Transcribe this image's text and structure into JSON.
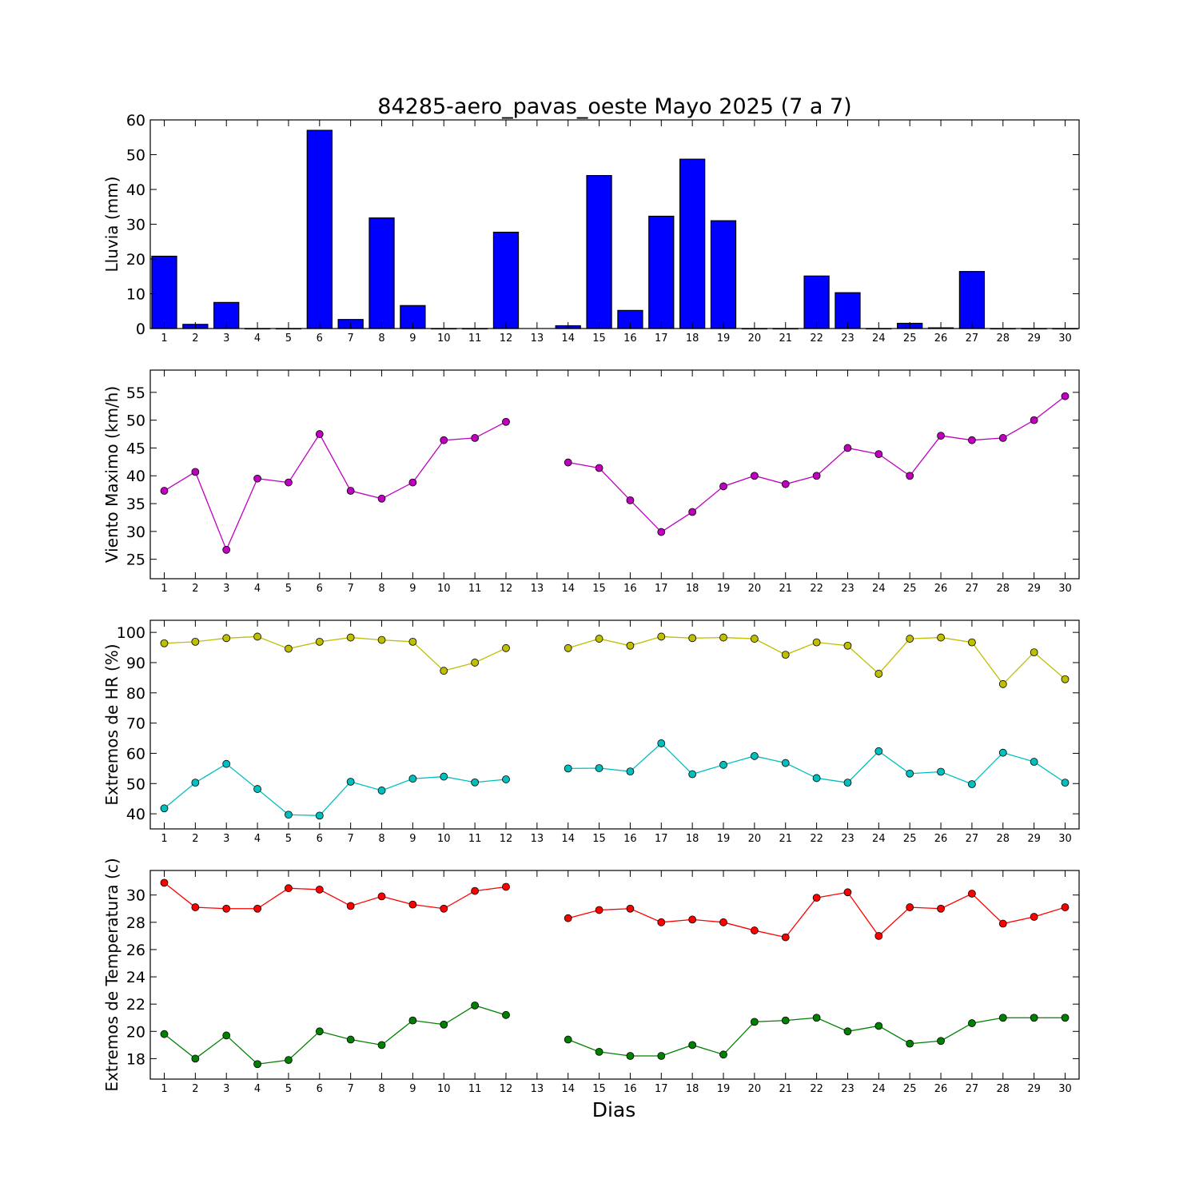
{
  "title": "84285-aero_pavas_oeste Mayo 2025  (7 a 7)",
  "xlabel": "Dias",
  "chart_data": [
    {
      "type": "bar",
      "ylabel": "Lluvia (mm)",
      "ylim": [
        0,
        60
      ],
      "yticks": [
        0,
        10,
        20,
        30,
        40,
        50,
        60
      ],
      "x": [
        1,
        2,
        3,
        4,
        5,
        6,
        7,
        8,
        9,
        10,
        11,
        12,
        13,
        14,
        15,
        16,
        17,
        18,
        19,
        20,
        21,
        22,
        23,
        24,
        25,
        26,
        27,
        28,
        29,
        30
      ],
      "series": [
        {
          "color": "#0000ff",
          "values": [
            20.8,
            1.2,
            7.5,
            0,
            0,
            57,
            2.6,
            31.8,
            6.6,
            0,
            0,
            27.7,
            null,
            0.8,
            44,
            5.2,
            32.3,
            48.7,
            31,
            0,
            0,
            15.1,
            10.3,
            0,
            1.5,
            0.2,
            16.4,
            0,
            0,
            0
          ]
        }
      ]
    },
    {
      "type": "line",
      "ylabel": "Viento Maximo (km/h)",
      "ylim": [
        21.5,
        59
      ],
      "yticks": [
        25,
        30,
        35,
        40,
        45,
        50,
        55
      ],
      "x": [
        1,
        2,
        3,
        4,
        5,
        6,
        7,
        8,
        9,
        10,
        11,
        12,
        13,
        14,
        15,
        16,
        17,
        18,
        19,
        20,
        21,
        22,
        23,
        24,
        25,
        26,
        27,
        28,
        29,
        30
      ],
      "series": [
        {
          "color": "#bf00bf",
          "values": [
            37.3,
            40.7,
            26.7,
            39.5,
            38.8,
            47.5,
            37.3,
            35.9,
            38.8,
            46.4,
            46.8,
            49.7,
            null,
            42.4,
            41.4,
            35.6,
            29.9,
            33.5,
            38.1,
            40.0,
            38.5,
            40.0,
            45.0,
            43.9,
            40.0,
            47.2,
            46.4,
            46.8,
            50.0,
            54.3
          ]
        }
      ]
    },
    {
      "type": "line",
      "ylabel": "Extremos de HR (%)",
      "ylim": [
        35,
        104
      ],
      "yticks": [
        40,
        50,
        60,
        70,
        80,
        90,
        100
      ],
      "x": [
        1,
        2,
        3,
        4,
        5,
        6,
        7,
        8,
        9,
        10,
        11,
        12,
        13,
        14,
        15,
        16,
        17,
        18,
        19,
        20,
        21,
        22,
        23,
        24,
        25,
        26,
        27,
        28,
        29,
        30
      ],
      "series": [
        {
          "color": "#bfbf00",
          "values": [
            96.4,
            96.9,
            98.1,
            98.6,
            94.6,
            96.9,
            98.3,
            97.5,
            96.9,
            87.3,
            90.0,
            94.8,
            null,
            94.8,
            97.9,
            95.6,
            98.6,
            98.1,
            98.3,
            97.9,
            92.6,
            96.7,
            95.6,
            86.3,
            97.9,
            98.3,
            96.7,
            82.9,
            93.4,
            84.5
          ]
        },
        {
          "color": "#00bfbf",
          "values": [
            41.8,
            50.3,
            56.5,
            48.2,
            39.7,
            39.4,
            50.6,
            47.7,
            51.6,
            52.3,
            50.4,
            51.4,
            null,
            55.0,
            55.1,
            54.0,
            63.3,
            53.1,
            56.2,
            59.1,
            56.8,
            51.8,
            50.3,
            60.7,
            53.3,
            53.9,
            49.8,
            60.2,
            57.2,
            50.3
          ]
        }
      ]
    },
    {
      "type": "line",
      "ylabel": "Extremos de Temperatura (c)",
      "ylim": [
        16.5,
        31.8
      ],
      "yticks": [
        18,
        20,
        22,
        24,
        26,
        28,
        30
      ],
      "x": [
        1,
        2,
        3,
        4,
        5,
        6,
        7,
        8,
        9,
        10,
        11,
        12,
        13,
        14,
        15,
        16,
        17,
        18,
        19,
        20,
        21,
        22,
        23,
        24,
        25,
        26,
        27,
        28,
        29,
        30
      ],
      "series": [
        {
          "color": "#ff0000",
          "values": [
            30.9,
            29.1,
            29.0,
            29.0,
            30.5,
            30.4,
            29.2,
            29.9,
            29.3,
            29.0,
            30.3,
            30.6,
            null,
            28.3,
            28.9,
            29.0,
            28.0,
            28.2,
            28.0,
            27.4,
            26.9,
            29.8,
            30.2,
            27.0,
            29.1,
            29.0,
            30.1,
            27.9,
            28.4,
            29.1
          ]
        },
        {
          "color": "#008000",
          "values": [
            19.8,
            18.0,
            19.7,
            17.6,
            17.9,
            20.0,
            19.4,
            19.0,
            20.8,
            20.5,
            21.9,
            21.2,
            null,
            19.4,
            18.5,
            18.2,
            18.2,
            19.0,
            18.3,
            20.7,
            20.8,
            21.0,
            20.0,
            20.4,
            19.1,
            19.3,
            20.6,
            21.0,
            21.0,
            21.0
          ]
        }
      ]
    }
  ]
}
